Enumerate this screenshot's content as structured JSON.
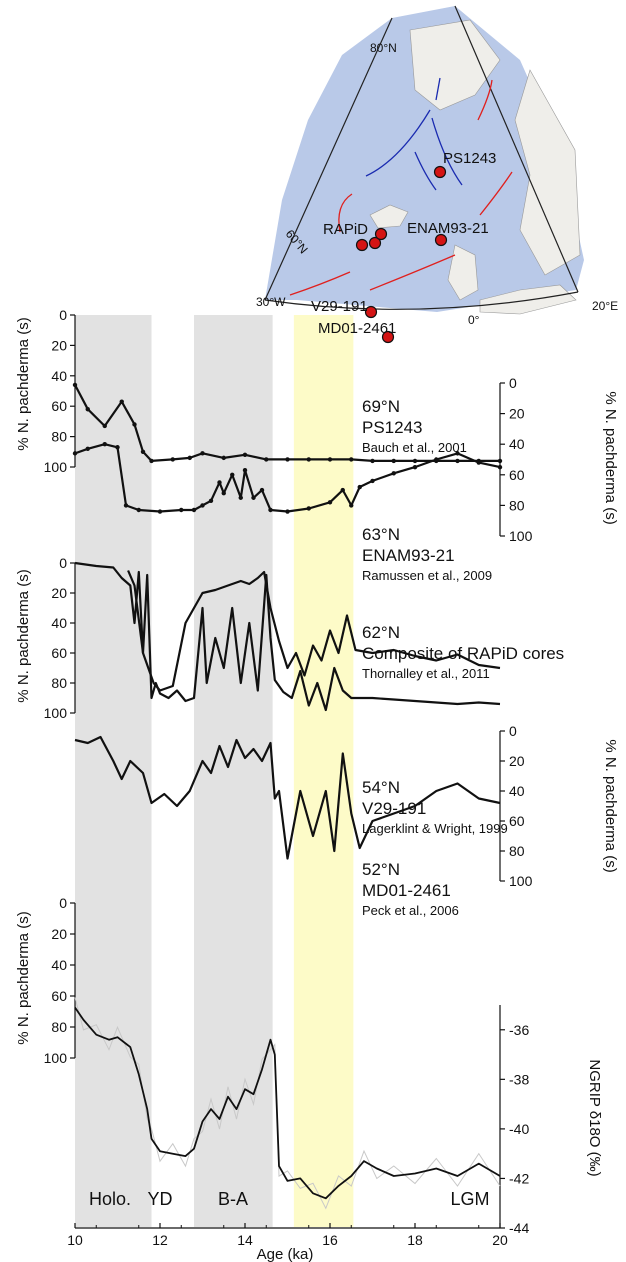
{
  "chart_data": {
    "type": "line",
    "xlabel": "Age (ka)",
    "xlim": [
      10,
      20
    ],
    "x_ticks": [
      "10",
      "12",
      "14",
      "16",
      "18",
      "20"
    ],
    "shaded_intervals": [
      {
        "label": "Holo.",
        "x0": 10.0,
        "x1": 11.8,
        "color": "#e2e2e2"
      },
      {
        "label": "YD",
        "x0": 11.8,
        "x1": 12.8,
        "color": "none"
      },
      {
        "label": "B-A",
        "x0": 12.8,
        "x1": 14.65,
        "color": "#e2e2e2"
      },
      {
        "label": "",
        "x0": 15.15,
        "x1": 16.55,
        "color": "#fdfbc8"
      },
      {
        "label": "LGM",
        "x0": 18.9,
        "x1": 19.8,
        "color": "none"
      }
    ],
    "panels": [
      {
        "latitude": "69°N",
        "core": "PS1243",
        "reference": "Bauch et al., 2001",
        "ylabel": "% N. pachderma (s)",
        "axis_side": "left",
        "ylim": [
          0,
          100
        ],
        "y_ticks": [
          "0",
          "20",
          "40",
          "60",
          "80",
          "100"
        ],
        "series": [
          {
            "x": [
              10.0,
              10.3,
              10.7,
              11.1,
              11.4,
              11.6,
              11.8,
              12.3,
              12.7,
              13.0,
              13.5,
              14.0,
              14.5,
              15.0,
              15.5,
              16.0,
              16.5,
              17.0,
              17.5,
              18.0,
              18.5,
              19.0,
              19.5,
              20.0
            ],
            "y": [
              46,
              62,
              73,
              57,
              72,
              90,
              96,
              95,
              94,
              91,
              94,
              92,
              95,
              95,
              95,
              95,
              95,
              96,
              96,
              96,
              96,
              96,
              96,
              96
            ]
          }
        ]
      },
      {
        "latitude": "",
        "core": "",
        "reference": "",
        "ylabel": "% N. pachderma (s)",
        "axis_side": "right",
        "ylim": [
          0,
          100
        ],
        "y_ticks": [
          "0",
          "20",
          "40",
          "60",
          "80",
          "100"
        ],
        "series": [
          {
            "x": [
              10.0,
              10.3,
              10.7,
              11.0,
              11.2,
              11.5,
              12.0,
              12.5,
              12.8,
              13.0,
              13.2,
              13.4,
              13.5,
              13.7,
              13.9,
              14.0,
              14.2,
              14.4,
              14.6,
              15.0,
              15.5,
              16.0,
              16.3,
              16.5,
              16.7,
              17.0,
              17.5,
              18.0,
              18.5,
              19.0,
              19.5,
              20.0
            ],
            "y": [
              46,
              43,
              40,
              42,
              80,
              83,
              84,
              83,
              83,
              80,
              77,
              65,
              72,
              60,
              75,
              57,
              75,
              70,
              83,
              84,
              82,
              78,
              70,
              80,
              68,
              64,
              59,
              55,
              50,
              46,
              52,
              55
            ]
          }
        ]
      },
      {
        "latitude": "63°N",
        "core": "ENAM93-21",
        "reference": "Ramussen et al., 2009",
        "ylabel": "% N. pachderma (s)",
        "axis_side": "left",
        "ylim": [
          0,
          100
        ],
        "y_ticks": [
          "0",
          "20",
          "40",
          "60",
          "80",
          "100"
        ],
        "series": [
          {
            "x": [
              10.0,
              10.5,
              10.9,
              11.1,
              11.3,
              11.4,
              11.5,
              11.6,
              11.7,
              11.75,
              11.8,
              11.9,
              12.0,
              12.2,
              12.4,
              12.6,
              12.8,
              13.0,
              13.1,
              13.3,
              13.5,
              13.7,
              13.9,
              14.1,
              14.3,
              14.5,
              14.6,
              14.7,
              14.9,
              15.1,
              15.3,
              15.5,
              15.7,
              15.9,
              16.1,
              16.3,
              16.5,
              17.0,
              17.5,
              18.0,
              18.5,
              19.0,
              19.5,
              20.0
            ],
            "y": [
              0,
              2,
              3,
              10,
              15,
              40,
              6,
              60,
              8,
              50,
              90,
              80,
              87,
              90,
              85,
              92,
              90,
              30,
              80,
              50,
              70,
              30,
              80,
              40,
              85,
              8,
              50,
              78,
              86,
              90,
              72,
              95,
              80,
              98,
              70,
              85,
              90,
              90,
              91,
              92,
              93,
              94,
              93,
              94
            ]
          }
        ]
      },
      {
        "latitude": "62°N",
        "core": "Composite of RAPiD cores",
        "reference": "Thornalley et al., 2011",
        "ylabel": "",
        "axis_side": "none",
        "ylim": [
          0,
          100
        ],
        "series": [
          {
            "x": [
              11.25,
              11.4,
              11.6,
              11.85,
              12.0,
              12.3,
              12.6,
              12.8,
              13.0,
              13.3,
              13.6,
              13.9,
              14.1,
              14.3,
              14.45,
              14.6,
              14.8,
              15.0,
              15.2,
              15.4,
              15.6,
              15.8,
              16.0,
              16.2,
              16.4,
              16.6,
              17.0,
              17.5,
              18.0,
              18.5,
              19.0,
              19.5,
              20.0
            ],
            "y": [
              5,
              15,
              60,
              80,
              85,
              82,
              40,
              30,
              20,
              18,
              15,
              12,
              14,
              10,
              6,
              30,
              52,
              70,
              60,
              75,
              55,
              65,
              45,
              60,
              35,
              58,
              60,
              58,
              62,
              65,
              61,
              68,
              70
            ]
          }
        ]
      },
      {
        "latitude": "54°N",
        "core": "V29-191",
        "reference": "Lagerklint & Wright, 1999",
        "ylabel": "% N. pachderma (s)",
        "axis_side": "right",
        "ylim": [
          0,
          100
        ],
        "y_ticks": [
          "0",
          "20",
          "40",
          "60",
          "80",
          "100"
        ],
        "series": [
          {
            "x": [
              10.0,
              10.3,
              10.6,
              10.9,
              11.1,
              11.3,
              11.6,
              11.8,
              12.1,
              12.4,
              12.7,
              13.0,
              13.2,
              13.4,
              13.6,
              13.8,
              14.0,
              14.2,
              14.4,
              14.6,
              14.7,
              14.8,
              15.0,
              15.3,
              15.6,
              15.9,
              16.1,
              16.3,
              16.5,
              16.7,
              17.0,
              17.5,
              18.0,
              18.5,
              19.0,
              19.5,
              20.0
            ],
            "y": [
              6,
              8,
              4,
              20,
              32,
              20,
              28,
              48,
              42,
              50,
              40,
              20,
              28,
              10,
              24,
              6,
              18,
              12,
              20,
              8,
              45,
              40,
              85,
              40,
              70,
              40,
              80,
              15,
              55,
              78,
              60,
              55,
              50,
              40,
              35,
              45,
              48
            ]
          }
        ]
      },
      {
        "latitude": "52°N",
        "core": "MD01-2461",
        "reference": "Peck et al., 2006",
        "ylabel": "% N. pachderma (s)",
        "axis_side": "left",
        "ylim": [
          0,
          100
        ],
        "y_ticks": [
          "0",
          "20",
          "40",
          "60",
          "80",
          "100"
        ],
        "series": []
      },
      {
        "latitude": "",
        "core": "",
        "reference": "",
        "ylabel": "NGRIP δ18O (‰)",
        "axis_side": "right",
        "ylim": [
          -44,
          -35
        ],
        "y_ticks": [
          "-36",
          "-38",
          "-40",
          "-42",
          "-44"
        ],
        "series": [
          {
            "x": [
              10.0,
              10.2,
              10.5,
              10.8,
              11.0,
              11.3,
              11.5,
              11.7,
              11.8,
              12.0,
              12.3,
              12.6,
              12.8,
              13.0,
              13.2,
              13.4,
              13.6,
              13.8,
              14.0,
              14.2,
              14.4,
              14.6,
              14.7,
              14.8,
              15.0,
              15.3,
              15.6,
              15.9,
              16.2,
              16.5,
              16.8,
              17.1,
              17.5,
              18.0,
              18.5,
              19.0,
              19.5,
              20.0
            ],
            "y": [
              -35.1,
              -35.6,
              -36.2,
              -36.4,
              -36.3,
              -36.7,
              -37.8,
              -39.2,
              -40.4,
              -40.9,
              -41.0,
              -41.1,
              -40.8,
              -39.7,
              -39.2,
              -39.6,
              -38.7,
              -39.2,
              -38.4,
              -38.6,
              -37.6,
              -36.4,
              -37.0,
              -41.5,
              -42.1,
              -42.0,
              -42.6,
              -42.8,
              -42.3,
              -41.9,
              -41.3,
              -41.6,
              -41.9,
              -41.8,
              -41.6,
              -41.9,
              -41.4,
              -41.9
            ]
          }
        ]
      }
    ]
  },
  "map": {
    "latitude_labels": [
      "80°N",
      "60°N"
    ],
    "longitude_labels": [
      "30°W",
      "0°",
      "20°E"
    ],
    "sites": [
      "PS1243",
      "RAPiD",
      "ENAM93-21",
      "V29-191",
      "MD01-2461"
    ],
    "colors": {
      "sea": "#b9c9e8",
      "land": "#efeeea",
      "warm_current": "#e0201e",
      "cold_current": "#1a2bb0",
      "site": "#d41414"
    }
  },
  "interval_labels": [
    "Holo.",
    "YD",
    "B-A",
    "LGM"
  ]
}
